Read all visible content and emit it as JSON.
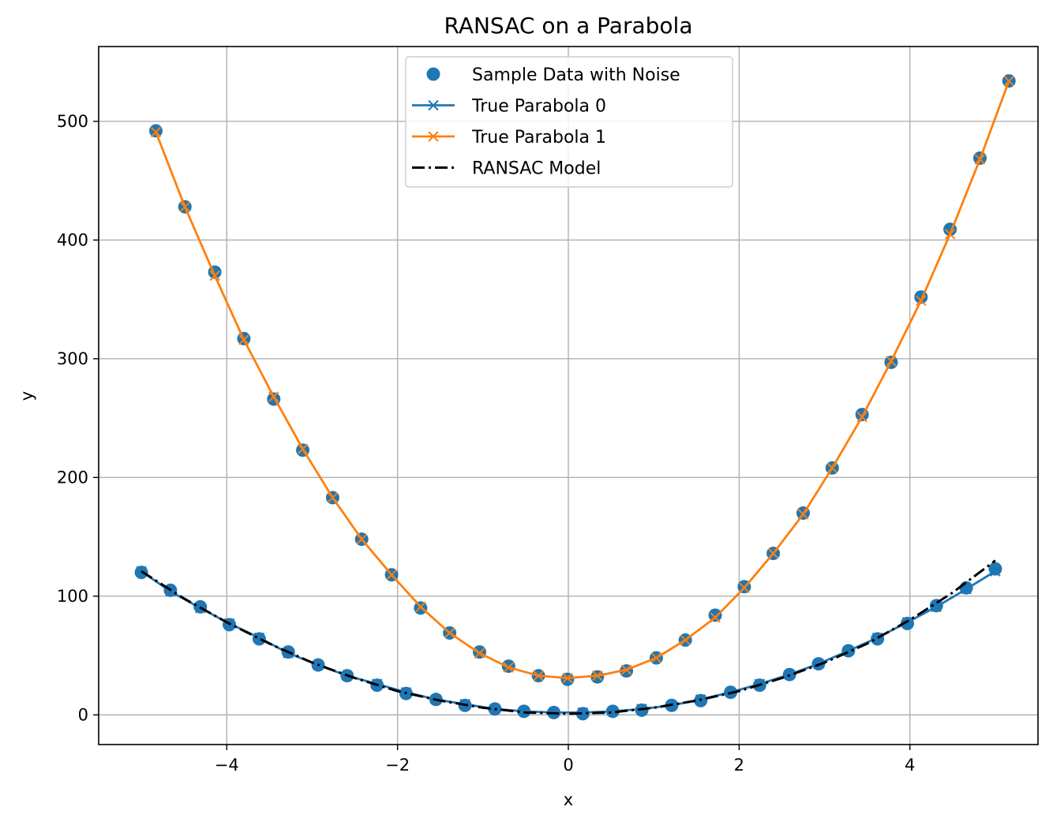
{
  "chart_data": {
    "type": "scatter",
    "title": "RANSAC on a Parabola",
    "xlabel": "x",
    "ylabel": "y",
    "xlim": [
      -5.5,
      5.5
    ],
    "ylim": [
      -25,
      563
    ],
    "grid": true,
    "legend_position": "top-center",
    "x_ticks": [
      -4,
      -2,
      0,
      2,
      4
    ],
    "x_tick_labels": [
      "−4",
      "−2",
      "0",
      "2",
      "4"
    ],
    "y_ticks": [
      0,
      100,
      200,
      300,
      400,
      500
    ],
    "y_tick_labels": [
      "0",
      "100",
      "200",
      "300",
      "400",
      "500"
    ],
    "legend": [
      {
        "label": "Sample Data with Noise",
        "kind": "scatter",
        "color": "#1f77b4"
      },
      {
        "label": "True Parabola 0",
        "kind": "line-x",
        "color": "#1f77b4"
      },
      {
        "label": "True Parabola 1",
        "kind": "line-x",
        "color": "#ff7f0e"
      },
      {
        "label": "RANSAC Model",
        "kind": "dashdot",
        "color": "#000000"
      }
    ],
    "series": [
      {
        "name": "True Parabola 0",
        "kind": "line-x",
        "color": "#1f77b4",
        "x": [
          -5.0,
          -4.66,
          -4.31,
          -3.97,
          -3.62,
          -3.28,
          -2.93,
          -2.59,
          -2.24,
          -1.9,
          -1.55,
          -1.21,
          -0.86,
          -0.52,
          -0.17,
          0.17,
          0.52,
          0.86,
          1.21,
          1.55,
          1.9,
          2.24,
          2.59,
          2.93,
          3.28,
          3.62,
          3.97,
          4.31,
          4.66,
          5.0
        ],
        "y": [
          121,
          104,
          90,
          77,
          65,
          52,
          42,
          33,
          26,
          19,
          13,
          9,
          5,
          3,
          2,
          2,
          3,
          5,
          8,
          13,
          19,
          26,
          34,
          43,
          54,
          65,
          78,
          91,
          106,
          121
        ]
      },
      {
        "name": "True Parabola 1",
        "kind": "line-x",
        "color": "#ff7f0e",
        "x": [
          -4.83,
          -4.49,
          -4.14,
          -3.8,
          -3.45,
          -3.11,
          -2.76,
          -2.42,
          -2.07,
          -1.73,
          -1.39,
          -1.04,
          -0.7,
          -0.35,
          -0.01,
          0.34,
          0.68,
          1.03,
          1.37,
          1.72,
          2.06,
          2.4,
          2.75,
          3.09,
          3.44,
          3.78,
          4.13,
          4.47,
          4.82,
          5.16
        ],
        "y": [
          491,
          428,
          370,
          316,
          268,
          224,
          183,
          148,
          118,
          91,
          69,
          52,
          40,
          33,
          31,
          33,
          38,
          48,
          63,
          82,
          107,
          136,
          169,
          208,
          251,
          298,
          349,
          405,
          468,
          534
        ]
      },
      {
        "name": "RANSAC Model",
        "kind": "dashdot",
        "color": "#000000",
        "x": [
          -5.0,
          -4.5,
          -4.0,
          -3.5,
          -3.0,
          -2.5,
          -2.0,
          -1.5,
          -1.0,
          -0.5,
          0.0,
          0.5,
          1.0,
          1.5,
          2.0,
          2.5,
          3.0,
          3.5,
          4.0,
          4.5,
          5.0
        ],
        "y": [
          121,
          98,
          78,
          60,
          44,
          31,
          20,
          12,
          6,
          2,
          1,
          2,
          6,
          12,
          20,
          31,
          44,
          60,
          80,
          103,
          130
        ]
      },
      {
        "name": "Sample Data with Noise",
        "kind": "scatter",
        "color": "#1f77b4",
        "x": [
          -5.0,
          -4.66,
          -4.31,
          -3.97,
          -3.62,
          -3.28,
          -2.93,
          -2.59,
          -2.24,
          -1.9,
          -1.55,
          -1.21,
          -0.86,
          -0.52,
          -0.17,
          0.17,
          0.52,
          0.86,
          1.21,
          1.55,
          1.9,
          2.24,
          2.59,
          2.93,
          3.28,
          3.62,
          3.97,
          4.31,
          4.66,
          5.0,
          -4.83,
          -4.49,
          -4.14,
          -3.8,
          -3.45,
          -3.11,
          -2.76,
          -2.42,
          -2.07,
          -1.73,
          -1.39,
          -1.04,
          -0.7,
          -0.35,
          -0.01,
          0.34,
          0.68,
          1.03,
          1.37,
          1.72,
          2.06,
          2.4,
          2.75,
          3.09,
          3.44,
          3.78,
          4.13,
          4.47,
          4.82,
          5.16
        ],
        "y": [
          120,
          105,
          91,
          76,
          64,
          53,
          42,
          33,
          25,
          18,
          13,
          8,
          5,
          3,
          2,
          1,
          3,
          4,
          8,
          12,
          19,
          25,
          34,
          43,
          54,
          64,
          77,
          92,
          107,
          123,
          492,
          428,
          373,
          317,
          266,
          223,
          183,
          148,
          118,
          90,
          69,
          53,
          41,
          33,
          30,
          32,
          37,
          48,
          63,
          84,
          108,
          136,
          170,
          208,
          253,
          297,
          352,
          409,
          469,
          534
        ]
      }
    ]
  }
}
